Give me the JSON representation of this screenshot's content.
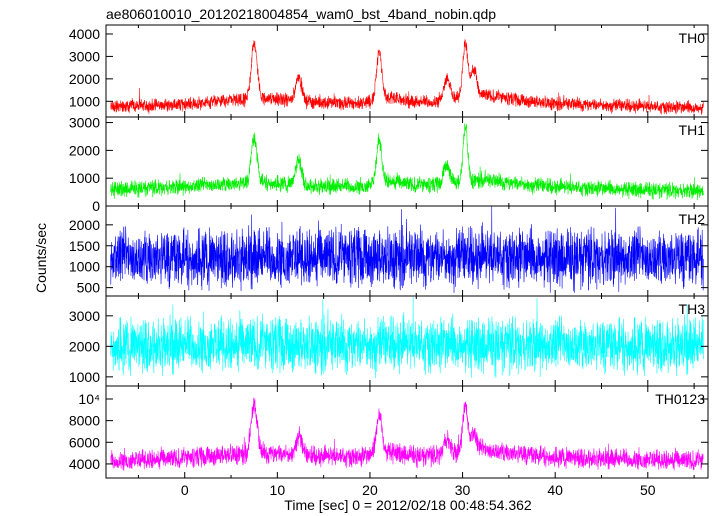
{
  "chart_data": {
    "type": "line",
    "title": "ae806010010_20120218004854_wam0_bst_4band_nobin.qdp",
    "xlabel": "Time [sec] 0 = 2012/02/18 00:48:54.362",
    "ylabel": "Counts/sec",
    "xlim": [
      -8.5,
      56.5
    ],
    "x_ticks": [
      "0",
      "10",
      "20",
      "30",
      "40",
      "50"
    ],
    "x_tick_values": [
      0,
      10,
      20,
      30,
      40,
      50
    ],
    "grid": false,
    "panels": [
      {
        "name": "TH0",
        "color": "#ff0000",
        "ylim": [
          300,
          4400
        ],
        "y_ticks": [
          "1000",
          "2000",
          "3000",
          "4000"
        ],
        "y_tick_values": [
          1000,
          2000,
          3000,
          4000
        ],
        "baseline": [
          [
            -8,
            750
          ],
          [
            0,
            860
          ],
          [
            5,
            1050
          ],
          [
            9,
            1100
          ],
          [
            14,
            950
          ],
          [
            19,
            900
          ],
          [
            22,
            1150
          ],
          [
            25,
            950
          ],
          [
            28,
            1000
          ],
          [
            32,
            1300
          ],
          [
            36,
            1050
          ],
          [
            40,
            900
          ],
          [
            50,
            760
          ],
          [
            56,
            700
          ]
        ],
        "noise": 450,
        "peaks": [
          [
            7.5,
            2500,
            0.45
          ],
          [
            12.3,
            1100,
            0.45
          ],
          [
            21.0,
            2200,
            0.4
          ],
          [
            28.3,
            1000,
            0.5
          ],
          [
            30.3,
            2400,
            0.4
          ],
          [
            31.2,
            1200,
            0.4
          ]
        ],
        "series": [
          {
            "name": "TH0",
            "points": [
              [
                -8,
                900
              ],
              [
                -4,
                950
              ],
              [
                0,
                1050
              ],
              [
                5,
                1250
              ],
              [
                7.5,
                3600
              ],
              [
                9,
                1400
              ],
              [
                12.3,
                2200
              ],
              [
                15,
                1150
              ],
              [
                19,
                1100
              ],
              [
                21,
                3300
              ],
              [
                23,
                1400
              ],
              [
                26,
                1100
              ],
              [
                28.3,
                2000
              ],
              [
                30.3,
                3700
              ],
              [
                32,
                1600
              ],
              [
                36,
                1250
              ],
              [
                40,
                1050
              ],
              [
                50,
                900
              ],
              [
                56,
                850
              ]
            ]
          }
        ]
      },
      {
        "name": "TH1",
        "color": "#00ee00",
        "ylim": [
          0,
          3200
        ],
        "y_ticks": [
          "0",
          "1000",
          "2000",
          "3000"
        ],
        "y_tick_values": [
          0,
          1000,
          2000,
          3000
        ],
        "baseline": [
          [
            -8,
            600
          ],
          [
            0,
            700
          ],
          [
            5,
            800
          ],
          [
            9,
            850
          ],
          [
            14,
            720
          ],
          [
            19,
            700
          ],
          [
            22,
            900
          ],
          [
            25,
            740
          ],
          [
            28,
            760
          ],
          [
            32,
            950
          ],
          [
            36,
            800
          ],
          [
            40,
            680
          ],
          [
            50,
            580
          ],
          [
            56,
            540
          ]
        ],
        "noise": 430,
        "peaks": [
          [
            7.5,
            1600,
            0.45
          ],
          [
            12.3,
            900,
            0.45
          ],
          [
            21.0,
            1500,
            0.4
          ],
          [
            28.3,
            700,
            0.5
          ],
          [
            30.3,
            2000,
            0.35
          ]
        ],
        "series": [
          {
            "name": "TH1",
            "points": [
              [
                -8,
                750
              ],
              [
                -4,
                800
              ],
              [
                0,
                850
              ],
              [
                5,
                950
              ],
              [
                7.5,
                2400
              ],
              [
                9,
                1050
              ],
              [
                12.3,
                1700
              ],
              [
                15,
                900
              ],
              [
                19,
                850
              ],
              [
                21,
                2300
              ],
              [
                23,
                1100
              ],
              [
                26,
                900
              ],
              [
                28.3,
                1450
              ],
              [
                30.3,
                2850
              ],
              [
                32,
                1200
              ],
              [
                36,
                950
              ],
              [
                40,
                820
              ],
              [
                50,
                700
              ],
              [
                56,
                650
              ]
            ]
          }
        ]
      },
      {
        "name": "TH2",
        "color": "#0000ff",
        "ylim": [
          300,
          2450
        ],
        "y_ticks": [
          "500",
          "1000",
          "1500",
          "2000"
        ],
        "y_tick_values": [
          500,
          1000,
          1500,
          2000
        ],
        "baseline": [
          [
            -8,
            1220
          ],
          [
            56,
            1220
          ]
        ],
        "noise": 1050,
        "peaks": [],
        "series": [
          {
            "name": "TH2",
            "points": [
              [
                -8,
                1200
              ],
              [
                0,
                1220
              ],
              [
                10,
                1230
              ],
              [
                20,
                1220
              ],
              [
                30,
                1240
              ],
              [
                40,
                1220
              ],
              [
                56,
                1210
              ]
            ]
          }
        ]
      },
      {
        "name": "TH3",
        "color": "#00ffff",
        "ylim": [
          700,
          3650
        ],
        "y_ticks": [
          "1000",
          "2000",
          "3000"
        ],
        "y_tick_values": [
          1000,
          2000,
          3000
        ],
        "baseline": [
          [
            -8,
            2050
          ],
          [
            56,
            2050
          ]
        ],
        "noise": 1350,
        "peaks": [],
        "series": [
          {
            "name": "TH3",
            "points": [
              [
                -8,
                2050
              ],
              [
                0,
                2060
              ],
              [
                10,
                2050
              ],
              [
                20,
                2070
              ],
              [
                30,
                2080
              ],
              [
                40,
                2050
              ],
              [
                56,
                2040
              ]
            ]
          }
        ]
      },
      {
        "name": "TH0123",
        "color": "#ff00ff",
        "ylim": [
          2700,
          11200
        ],
        "y_ticks": [
          "4000",
          "6000",
          "8000",
          "10⁴"
        ],
        "y_tick_values": [
          4000,
          6000,
          8000,
          10000
        ],
        "baseline": [
          [
            -8,
            4300
          ],
          [
            0,
            4500
          ],
          [
            5,
            4900
          ],
          [
            9,
            5000
          ],
          [
            14,
            4700
          ],
          [
            19,
            4650
          ],
          [
            22,
            5150
          ],
          [
            25,
            4750
          ],
          [
            28,
            4800
          ],
          [
            32,
            5350
          ],
          [
            36,
            4950
          ],
          [
            40,
            4650
          ],
          [
            50,
            4400
          ],
          [
            56,
            4250
          ]
        ],
        "noise": 1400,
        "peaks": [
          [
            7.5,
            4500,
            0.45
          ],
          [
            12.3,
            1800,
            0.45
          ],
          [
            21.0,
            3800,
            0.4
          ],
          [
            28.3,
            1500,
            0.5
          ],
          [
            30.3,
            4300,
            0.4
          ],
          [
            31.2,
            1600,
            0.4
          ]
        ],
        "series": [
          {
            "name": "TH0123",
            "points": [
              [
                -8,
                4500
              ],
              [
                -4,
                4650
              ],
              [
                0,
                4800
              ],
              [
                5,
                5200
              ],
              [
                7.5,
                9800
              ],
              [
                9,
                5400
              ],
              [
                12.3,
                7000
              ],
              [
                15,
                5000
              ],
              [
                19,
                4900
              ],
              [
                21,
                9000
              ],
              [
                23,
                5500
              ],
              [
                26,
                5000
              ],
              [
                28.3,
                6500
              ],
              [
                30.3,
                9900
              ],
              [
                32,
                5900
              ],
              [
                36,
                5200
              ],
              [
                40,
                4850
              ],
              [
                50,
                4550
              ],
              [
                56,
                4450
              ]
            ]
          }
        ]
      }
    ]
  }
}
